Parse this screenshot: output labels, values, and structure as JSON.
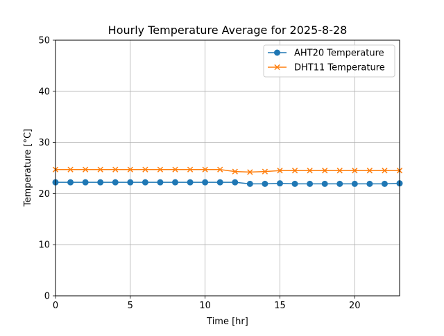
{
  "chart_data": {
    "type": "line",
    "title": "Hourly Temperature Average for 2025-8-28",
    "xlabel": "Time [hr]",
    "ylabel": "Temperature [°C]",
    "xlim": [
      0,
      23
    ],
    "ylim": [
      0,
      50
    ],
    "xticks": [
      0,
      5,
      10,
      15,
      20
    ],
    "yticks": [
      0,
      10,
      20,
      30,
      40,
      50
    ],
    "grid": true,
    "legend_position": "top-right",
    "x": [
      0,
      1,
      2,
      3,
      4,
      5,
      6,
      7,
      8,
      9,
      10,
      11,
      12,
      13,
      14,
      15,
      16,
      17,
      18,
      19,
      20,
      21,
      22,
      23
    ],
    "series": [
      {
        "name": "AHT20 Temperature",
        "color": "#1f77b4",
        "marker": "circle",
        "values": [
          22.2,
          22.2,
          22.2,
          22.2,
          22.2,
          22.2,
          22.2,
          22.2,
          22.2,
          22.2,
          22.2,
          22.2,
          22.2,
          21.9,
          21.9,
          22.0,
          21.9,
          21.9,
          21.9,
          21.9,
          21.9,
          21.9,
          21.9,
          22.0
        ]
      },
      {
        "name": "DHT11 Temperature",
        "color": "#ff7f0e",
        "marker": "x",
        "values": [
          24.7,
          24.7,
          24.7,
          24.7,
          24.7,
          24.7,
          24.7,
          24.7,
          24.7,
          24.7,
          24.7,
          24.7,
          24.3,
          24.2,
          24.3,
          24.5,
          24.5,
          24.5,
          24.5,
          24.5,
          24.5,
          24.5,
          24.5,
          24.5
        ]
      }
    ]
  }
}
